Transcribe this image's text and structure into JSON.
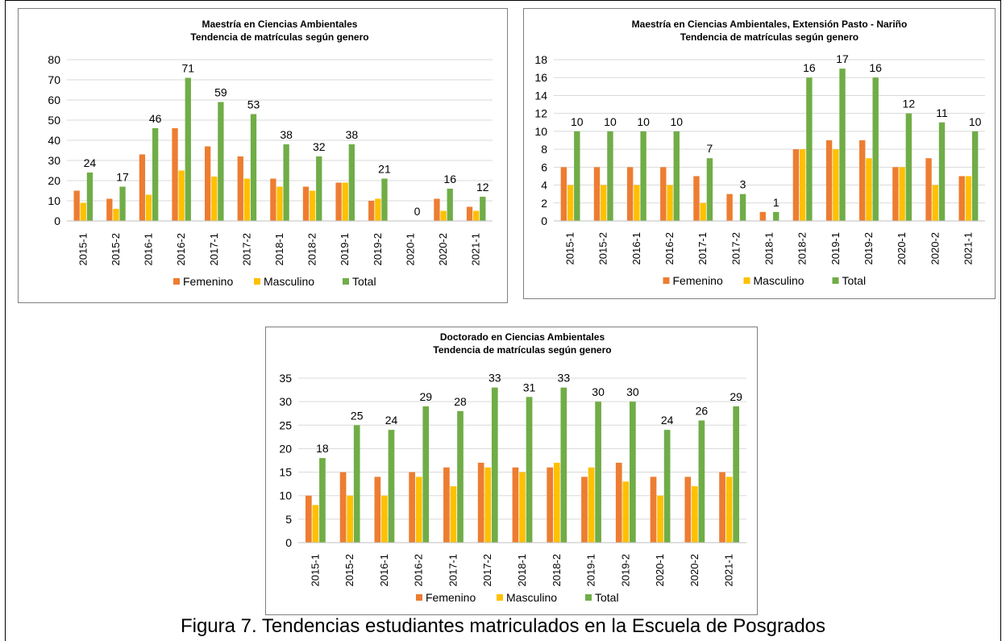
{
  "caption": "Figura 7. Tendencias estudiantes matriculados en la Escuela de Posgrados",
  "colors": {
    "Femenino": "#ED7D31",
    "Masculino": "#FFC000",
    "Total": "#70AD47",
    "grid": "#d9d9d9"
  },
  "chart_data": [
    {
      "type": "bar",
      "title": "Maestría en Ciencias Ambientales",
      "subtitle": "Tendencia de matrículas según genero",
      "categories": [
        "2015-1",
        "2015-2",
        "2016-1",
        "2016-2",
        "2017-1",
        "2017-2",
        "2018-1",
        "2018-2",
        "2019-1",
        "2019-2",
        "2020-1",
        "2020-2",
        "2021-1"
      ],
      "series": [
        {
          "name": "Femenino",
          "values": [
            15,
            11,
            33,
            46,
            37,
            32,
            21,
            17,
            19,
            10,
            0,
            11,
            7
          ]
        },
        {
          "name": "Masculino",
          "values": [
            9,
            6,
            13,
            25,
            22,
            21,
            17,
            15,
            19,
            11,
            0,
            5,
            5
          ]
        },
        {
          "name": "Total",
          "values": [
            24,
            17,
            46,
            71,
            59,
            53,
            38,
            32,
            38,
            21,
            0,
            16,
            12
          ]
        }
      ],
      "ylim": [
        0,
        80
      ],
      "yticks": [
        0,
        10,
        20,
        30,
        40,
        50,
        60,
        70,
        80
      ],
      "data_labels_series": "Total",
      "grid": true,
      "legend": "bottom"
    },
    {
      "type": "bar",
      "title": "Maestría en Ciencias Ambientales, Extensión Pasto - Nariño",
      "subtitle": "Tendencia de matrículas según genero",
      "categories": [
        "2015-1",
        "2015-2",
        "2016-1",
        "2016-2",
        "2017-1",
        "2017-2",
        "2018-1",
        "2018-2",
        "2019-1",
        "2019-2",
        "2020-1",
        "2020-2",
        "2021-1"
      ],
      "series": [
        {
          "name": "Femenino",
          "values": [
            6,
            6,
            6,
            6,
            5,
            3,
            1,
            8,
            9,
            9,
            6,
            7,
            5
          ]
        },
        {
          "name": "Masculino",
          "values": [
            4,
            4,
            4,
            4,
            2,
            0,
            0,
            8,
            8,
            7,
            6,
            4,
            5
          ]
        },
        {
          "name": "Total",
          "values": [
            10,
            10,
            10,
            10,
            7,
            3,
            1,
            16,
            17,
            16,
            12,
            11,
            10
          ]
        }
      ],
      "ylim": [
        0,
        18
      ],
      "yticks": [
        0,
        2,
        4,
        6,
        8,
        10,
        12,
        14,
        16,
        18
      ],
      "data_labels_series": "Total",
      "grid": true,
      "legend": "bottom"
    },
    {
      "type": "bar",
      "title": "Doctorado en Ciencias Ambientales",
      "subtitle": "Tendencia de matrículas según genero",
      "categories": [
        "2015-1",
        "2015-2",
        "2016-1",
        "2016-2",
        "2017-1",
        "2017-2",
        "2018-1",
        "2018-2",
        "2019-1",
        "2019-2",
        "2020-1",
        "2020-2",
        "2021-1"
      ],
      "series": [
        {
          "name": "Femenino",
          "values": [
            10,
            15,
            14,
            15,
            16,
            17,
            16,
            16,
            14,
            17,
            14,
            14,
            15
          ]
        },
        {
          "name": "Masculino",
          "values": [
            8,
            10,
            10,
            14,
            12,
            16,
            15,
            17,
            16,
            13,
            10,
            12,
            14
          ]
        },
        {
          "name": "Total",
          "values": [
            18,
            25,
            24,
            29,
            28,
            33,
            31,
            33,
            30,
            30,
            24,
            26,
            29
          ]
        }
      ],
      "ylim": [
        0,
        35
      ],
      "yticks": [
        0,
        5,
        10,
        15,
        20,
        25,
        30,
        35
      ],
      "data_labels_series": "Total",
      "grid": true,
      "legend": "bottom"
    }
  ]
}
